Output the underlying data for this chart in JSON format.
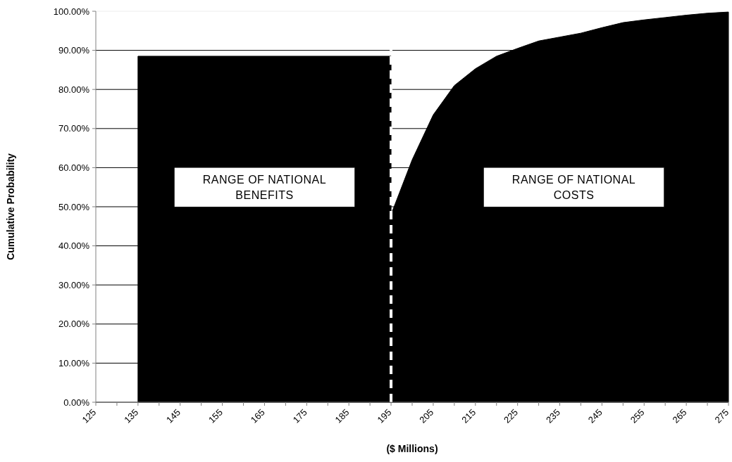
{
  "chart_data": {
    "type": "area",
    "xlabel": "($ Millions)",
    "ylabel": "Cumulative Probability",
    "xlim": [
      125,
      275
    ],
    "xticks": [
      125,
      {
        "value": 130,
        "label": null
      },
      135,
      {
        "value": 140,
        "label": null
      },
      145,
      {
        "value": 150,
        "label": null
      },
      155,
      {
        "value": 160,
        "label": null
      },
      165,
      {
        "value": 170,
        "label": null
      },
      175,
      {
        "value": 180,
        "label": null
      },
      185,
      {
        "value": 190,
        "label": null
      },
      195,
      {
        "value": 200,
        "label": null
      },
      205,
      {
        "value": 210,
        "label": null
      },
      215,
      {
        "value": 220,
        "label": null
      },
      225,
      {
        "value": 230,
        "label": null
      },
      235,
      {
        "value": 240,
        "label": null
      },
      245,
      {
        "value": 250,
        "label": null
      },
      255,
      {
        "value": 260,
        "label": null
      },
      265,
      {
        "value": 270,
        "label": null
      },
      275
    ],
    "ylim": [
      0,
      100
    ],
    "yticks": [
      {
        "value": 0,
        "label": "0.00%"
      },
      {
        "value": 10,
        "label": "10.00%"
      },
      {
        "value": 20,
        "label": "20.00%"
      },
      {
        "value": 30,
        "label": "30.00%"
      },
      {
        "value": 40,
        "label": "40.00%"
      },
      {
        "value": 50,
        "label": "50.00%"
      },
      {
        "value": 60,
        "label": "60.00%"
      },
      {
        "value": 70,
        "label": "70.00%"
      },
      {
        "value": 80,
        "label": "80.00%"
      },
      {
        "value": 90,
        "label": "90.00%"
      },
      {
        "value": 100,
        "label": "100.00%"
      }
    ],
    "grid": "y",
    "series": [
      {
        "color": "#000000",
        "x": [
          135,
          195
        ],
        "values": [
          88.5,
          88.5
        ]
      },
      {
        "color": "#000000",
        "x": [
          195,
          200,
          205,
          210,
          215,
          220,
          225,
          230,
          235,
          240,
          245,
          250,
          255,
          260,
          265,
          270,
          275
        ],
        "values": [
          48,
          62,
          73.5,
          81,
          85.3,
          88.5,
          90.5,
          92.4,
          93.4,
          94.4,
          95.8,
          97.1,
          97.8,
          98.4,
          99,
          99.5,
          99.8
        ]
      }
    ],
    "ref_lines": [
      {
        "axis": "x",
        "value": 195,
        "color": "#ffffff",
        "line_style": "dashed"
      }
    ],
    "annotations": [
      "RANGE OF NATIONAL BENEFITS",
      "RANGE OF NATIONAL COSTS"
    ]
  }
}
